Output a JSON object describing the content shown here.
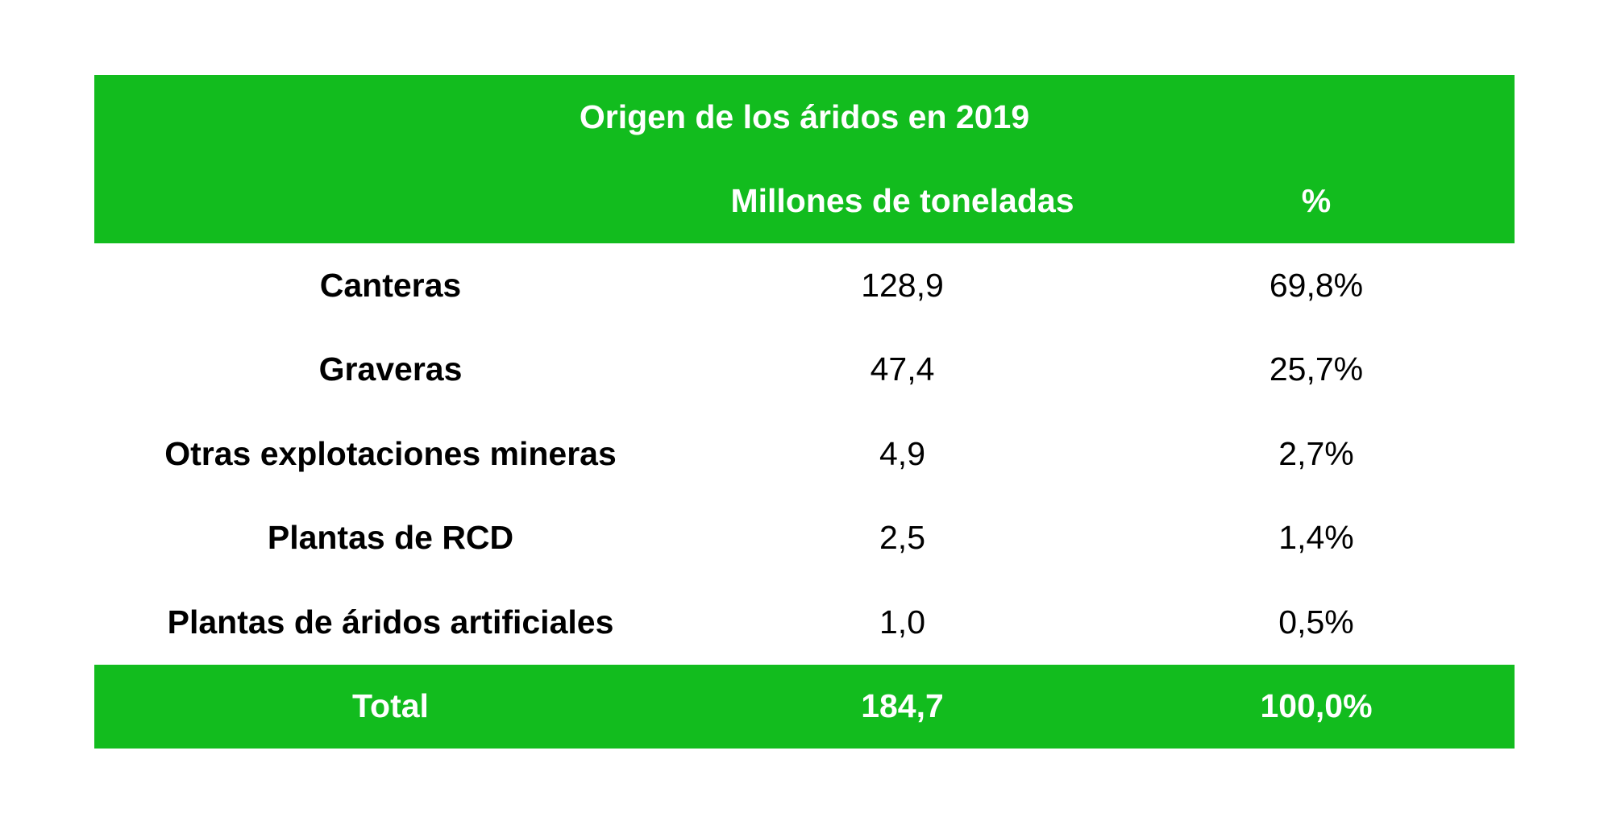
{
  "chart_data": {
    "type": "table",
    "title": "Origen de los áridos en 2019",
    "columns": [
      "",
      "Millones de toneladas",
      "%"
    ],
    "rows": [
      {
        "label": "Canteras",
        "tonnes": "128,9",
        "percent": "69,8%"
      },
      {
        "label": "Graveras",
        "tonnes": "47,4",
        "percent": "25,7%"
      },
      {
        "label": "Otras explotaciones mineras",
        "tonnes": "4,9",
        "percent": "2,7%"
      },
      {
        "label": "Plantas de RCD",
        "tonnes": "2,5",
        "percent": "1,4%"
      },
      {
        "label": "Plantas de áridos artificiales",
        "tonnes": "1,0",
        "percent": "0,5%"
      }
    ],
    "total": {
      "label": "Total",
      "tonnes": "184,7",
      "percent": "100,0%"
    }
  },
  "colors": {
    "header_bg": "#12bc1e",
    "header_text": "#ffffff",
    "body_text": "#000000"
  }
}
